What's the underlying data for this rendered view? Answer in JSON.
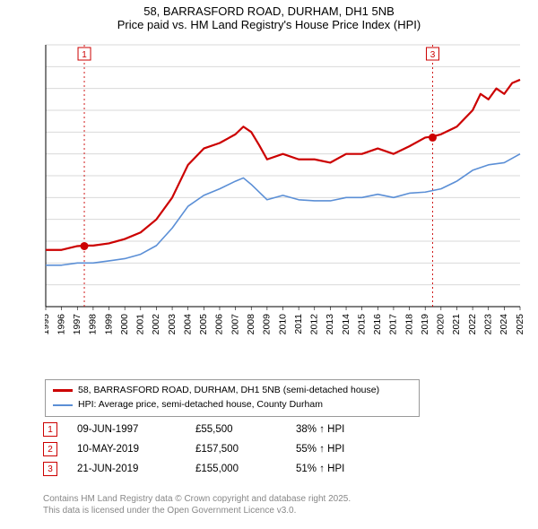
{
  "title_line1": "58, BARRASFORD ROAD, DURHAM, DH1 5NB",
  "title_line2": "Price paid vs. HM Land Registry's House Price Index (HPI)",
  "chart": {
    "type": "line",
    "background_color": "#ffffff",
    "grid_color": "#d9d9d9",
    "x": {
      "min": 1995,
      "max": 2025,
      "ticks": [
        1995,
        1996,
        1997,
        1998,
        1999,
        2000,
        2001,
        2002,
        2003,
        2004,
        2005,
        2006,
        2007,
        2008,
        2009,
        2010,
        2011,
        2012,
        2013,
        2014,
        2015,
        2016,
        2017,
        2018,
        2019,
        2020,
        2021,
        2022,
        2023,
        2024,
        2025
      ]
    },
    "y": {
      "min": 0,
      "max": 240000,
      "tick_step": 20000,
      "tick_format_prefix": "£",
      "tick_format_suffix": "K",
      "tick_divide": 1000
    },
    "series": [
      {
        "name": "property",
        "label": "58, BARRASFORD ROAD, DURHAM, DH1 5NB (semi-detached house)",
        "color": "#cc0000",
        "line_width": 2.2,
        "points": [
          [
            1995,
            52000
          ],
          [
            1996,
            52000
          ],
          [
            1997,
            55500
          ],
          [
            1997.5,
            56000
          ],
          [
            1998,
            56000
          ],
          [
            1999,
            58000
          ],
          [
            2000,
            62000
          ],
          [
            2001,
            68000
          ],
          [
            2002,
            80000
          ],
          [
            2003,
            100000
          ],
          [
            2004,
            130000
          ],
          [
            2005,
            145000
          ],
          [
            2006,
            150000
          ],
          [
            2007,
            158000
          ],
          [
            2007.5,
            165000
          ],
          [
            2008,
            160000
          ],
          [
            2008.5,
            148000
          ],
          [
            2009,
            135000
          ],
          [
            2010,
            140000
          ],
          [
            2011,
            135000
          ],
          [
            2012,
            135000
          ],
          [
            2013,
            132000
          ],
          [
            2014,
            140000
          ],
          [
            2015,
            140000
          ],
          [
            2016,
            145000
          ],
          [
            2017,
            140000
          ],
          [
            2018,
            147000
          ],
          [
            2019,
            155000
          ],
          [
            2019.5,
            156000
          ],
          [
            2020,
            158000
          ],
          [
            2021,
            165000
          ],
          [
            2022,
            180000
          ],
          [
            2022.5,
            195000
          ],
          [
            2023,
            190000
          ],
          [
            2023.5,
            200000
          ],
          [
            2024,
            195000
          ],
          [
            2024.5,
            205000
          ],
          [
            2025,
            208000
          ]
        ]
      },
      {
        "name": "hpi",
        "label": "HPI: Average price, semi-detached house, County Durham",
        "color": "#5b8fd6",
        "line_width": 1.6,
        "points": [
          [
            1995,
            38000
          ],
          [
            1996,
            38000
          ],
          [
            1997,
            40000
          ],
          [
            1998,
            40000
          ],
          [
            1999,
            42000
          ],
          [
            2000,
            44000
          ],
          [
            2001,
            48000
          ],
          [
            2002,
            56000
          ],
          [
            2003,
            72000
          ],
          [
            2004,
            92000
          ],
          [
            2005,
            102000
          ],
          [
            2006,
            108000
          ],
          [
            2007,
            115000
          ],
          [
            2007.5,
            118000
          ],
          [
            2008,
            112000
          ],
          [
            2009,
            98000
          ],
          [
            2010,
            102000
          ],
          [
            2011,
            98000
          ],
          [
            2012,
            97000
          ],
          [
            2013,
            97000
          ],
          [
            2014,
            100000
          ],
          [
            2015,
            100000
          ],
          [
            2016,
            103000
          ],
          [
            2017,
            100000
          ],
          [
            2018,
            104000
          ],
          [
            2019,
            105000
          ],
          [
            2020,
            108000
          ],
          [
            2021,
            115000
          ],
          [
            2022,
            125000
          ],
          [
            2023,
            130000
          ],
          [
            2024,
            132000
          ],
          [
            2025,
            140000
          ]
        ]
      }
    ],
    "sale_markers": [
      {
        "n": "1",
        "x": 1997.44,
        "y": 55500,
        "show_dot": true
      },
      {
        "n": "3",
        "x": 2019.47,
        "y": 155000,
        "show_dot": true
      }
    ],
    "marker_style": {
      "box_border": "#cc0000",
      "box_fill": "#ffffff",
      "box_text": "#cc0000",
      "dash_color": "#cc0000",
      "dot_fill": "#cc0000",
      "dot_radius": 4.5
    }
  },
  "legend": {
    "border_color": "#999999",
    "items": [
      {
        "color": "#cc0000",
        "thick": 3,
        "label": "58, BARRASFORD ROAD, DURHAM, DH1 5NB (semi-detached house)"
      },
      {
        "color": "#5b8fd6",
        "thick": 2,
        "label": "HPI: Average price, semi-detached house, County Durham"
      }
    ]
  },
  "sales_table": {
    "marker_border": "#cc0000",
    "rows": [
      {
        "n": "1",
        "date": "09-JUN-1997",
        "price": "£55,500",
        "diff": "38% ↑ HPI"
      },
      {
        "n": "2",
        "date": "10-MAY-2019",
        "price": "£157,500",
        "diff": "55% ↑ HPI"
      },
      {
        "n": "3",
        "date": "21-JUN-2019",
        "price": "£155,000",
        "diff": "51% ↑ HPI"
      }
    ]
  },
  "footer_line1": "Contains HM Land Registry data © Crown copyright and database right 2025.",
  "footer_line2": "This data is licensed under the Open Government Licence v3.0."
}
